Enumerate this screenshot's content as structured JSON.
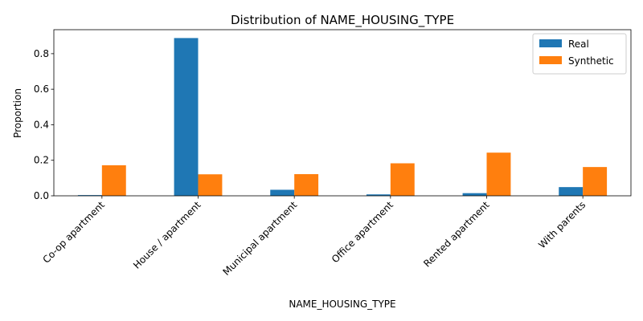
{
  "chart_data": {
    "type": "bar",
    "title": "Distribution of NAME_HOUSING_TYPE",
    "xlabel": "NAME_HOUSING_TYPE",
    "ylabel": "Proportion",
    "categories": [
      "Co-op apartment",
      "House / apartment",
      "Municipal apartment",
      "Office apartment",
      "Rented apartment",
      "With parents"
    ],
    "series": [
      {
        "name": "Real",
        "color": "#1f77b4",
        "values": [
          0.004,
          0.888,
          0.034,
          0.008,
          0.015,
          0.049
        ]
      },
      {
        "name": "Synthetic",
        "color": "#ff7f0e",
        "values": [
          0.172,
          0.121,
          0.122,
          0.183,
          0.243,
          0.162
        ]
      }
    ],
    "ylim": [
      0,
      0.935
    ],
    "yticks": [
      0.0,
      0.2,
      0.4,
      0.6,
      0.8
    ],
    "ytick_labels": [
      "0.0",
      "0.2",
      "0.4",
      "0.6",
      "0.8"
    ],
    "legend_position": "top-right",
    "grid": false
  }
}
